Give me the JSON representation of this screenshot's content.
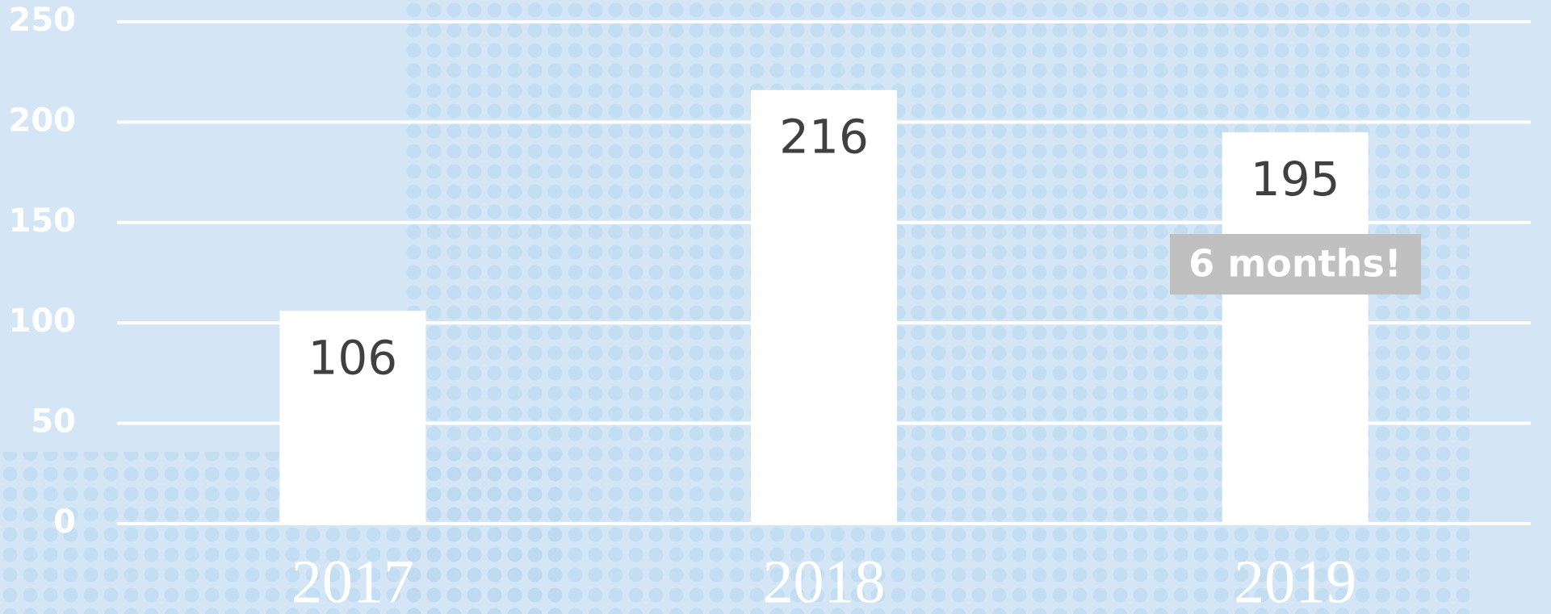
{
  "chart_data": {
    "type": "bar",
    "categories": [
      "2017",
      "2018",
      "2019"
    ],
    "values": [
      106,
      216,
      195
    ],
    "color": "#ffffff",
    "ylim": [
      0,
      250
    ],
    "yticks": [
      0,
      50,
      100,
      150,
      200,
      250
    ],
    "grid": true,
    "annotation": "6 months!"
  }
}
